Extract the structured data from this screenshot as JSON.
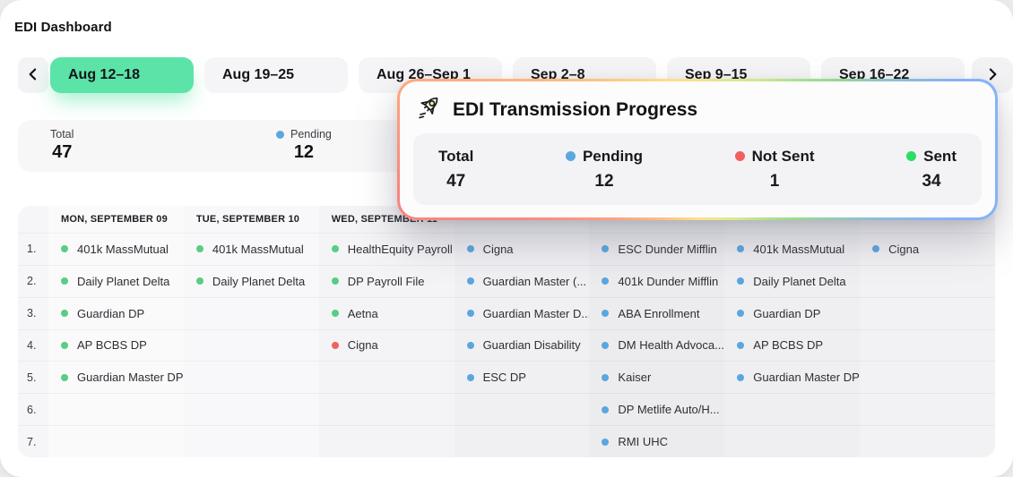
{
  "page": {
    "title": "EDI Dashboard"
  },
  "colors": {
    "tab_selected": "#5CE3A8",
    "green": "#57CE80",
    "blue": "#5AA7DF",
    "red": "#F2605E",
    "sent_green": "#2BDE63"
  },
  "week_tabs": {
    "prev_icon": "chevron-left-icon",
    "next_icon": "chevron-right-icon",
    "items": [
      {
        "label": "Aug 12–18",
        "selected": true
      },
      {
        "label": "Aug 19–25",
        "selected": false
      },
      {
        "label": "Aug 26–Sep 1",
        "selected": false
      },
      {
        "label": "Sep 2–8",
        "selected": false
      },
      {
        "label": "Sep 9–15",
        "selected": false
      },
      {
        "label": "Sep 16–22",
        "selected": false
      }
    ]
  },
  "summary_bar": {
    "stats": [
      {
        "label": "Total",
        "value": "47",
        "dot": null
      },
      {
        "label": "Pending",
        "value": "12",
        "dot": "blue"
      }
    ]
  },
  "popup": {
    "icon": "rocket-icon",
    "title": "EDI Transmission Progress",
    "stats": [
      {
        "label": "Total",
        "value": "47",
        "dot": null
      },
      {
        "label": "Pending",
        "value": "12",
        "dot": "blue"
      },
      {
        "label": "Not Sent",
        "value": "1",
        "dot": "red"
      },
      {
        "label": "Sent",
        "value": "34",
        "dot": "sent_green"
      }
    ]
  },
  "table": {
    "headers": [
      "",
      "MON, SEPTEMBER 09",
      "TUE, SEPTEMBER 10",
      "WED, SEPTEMBER 11",
      "",
      "",
      "",
      ""
    ],
    "rows": [
      {
        "num": "1.",
        "cells": [
          {
            "dot": "green",
            "text": "401k MassMutual"
          },
          {
            "dot": "green",
            "text": "401k MassMutual"
          },
          {
            "dot": "green",
            "text": "HealthEquity Payroll"
          },
          {
            "dot": "blue",
            "text": "Cigna"
          },
          {
            "dot": "blue",
            "text": "ESC Dunder Mifflin"
          },
          {
            "dot": "blue",
            "text": "401k MassMutual"
          },
          {
            "dot": "blue",
            "text": "Cigna"
          }
        ]
      },
      {
        "num": "2.",
        "cells": [
          {
            "dot": "green",
            "text": "Daily Planet Delta"
          },
          {
            "dot": "green",
            "text": "Daily Planet Delta"
          },
          {
            "dot": "green",
            "text": "DP Payroll File"
          },
          {
            "dot": "blue",
            "text": "Guardian Master (..."
          },
          {
            "dot": "blue",
            "text": "401k Dunder Mifflin"
          },
          {
            "dot": "blue",
            "text": "Daily Planet Delta"
          },
          null
        ]
      },
      {
        "num": "3.",
        "cells": [
          {
            "dot": "green",
            "text": "Guardian DP"
          },
          null,
          {
            "dot": "green",
            "text": "Aetna"
          },
          {
            "dot": "blue",
            "text": "Guardian Master D..."
          },
          {
            "dot": "blue",
            "text": "ABA Enrollment"
          },
          {
            "dot": "blue",
            "text": "Guardian DP"
          },
          null
        ]
      },
      {
        "num": "4.",
        "cells": [
          {
            "dot": "green",
            "text": "AP BCBS DP"
          },
          null,
          {
            "dot": "red",
            "text": "Cigna"
          },
          {
            "dot": "blue",
            "text": "Guardian Disability"
          },
          {
            "dot": "blue",
            "text": "DM Health Advoca..."
          },
          {
            "dot": "blue",
            "text": "AP BCBS DP"
          },
          null
        ]
      },
      {
        "num": "5.",
        "cells": [
          {
            "dot": "green",
            "text": "Guardian Master DP"
          },
          null,
          null,
          {
            "dot": "blue",
            "text": "ESC DP"
          },
          {
            "dot": "blue",
            "text": "Kaiser"
          },
          {
            "dot": "blue",
            "text": "Guardian Master DP"
          },
          null
        ]
      },
      {
        "num": "6.",
        "cells": [
          null,
          null,
          null,
          null,
          {
            "dot": "blue",
            "text": "DP Metlife Auto/H..."
          },
          null,
          null
        ]
      },
      {
        "num": "7.",
        "cells": [
          null,
          null,
          null,
          null,
          {
            "dot": "blue",
            "text": "RMI UHC"
          },
          null,
          null
        ]
      }
    ]
  }
}
